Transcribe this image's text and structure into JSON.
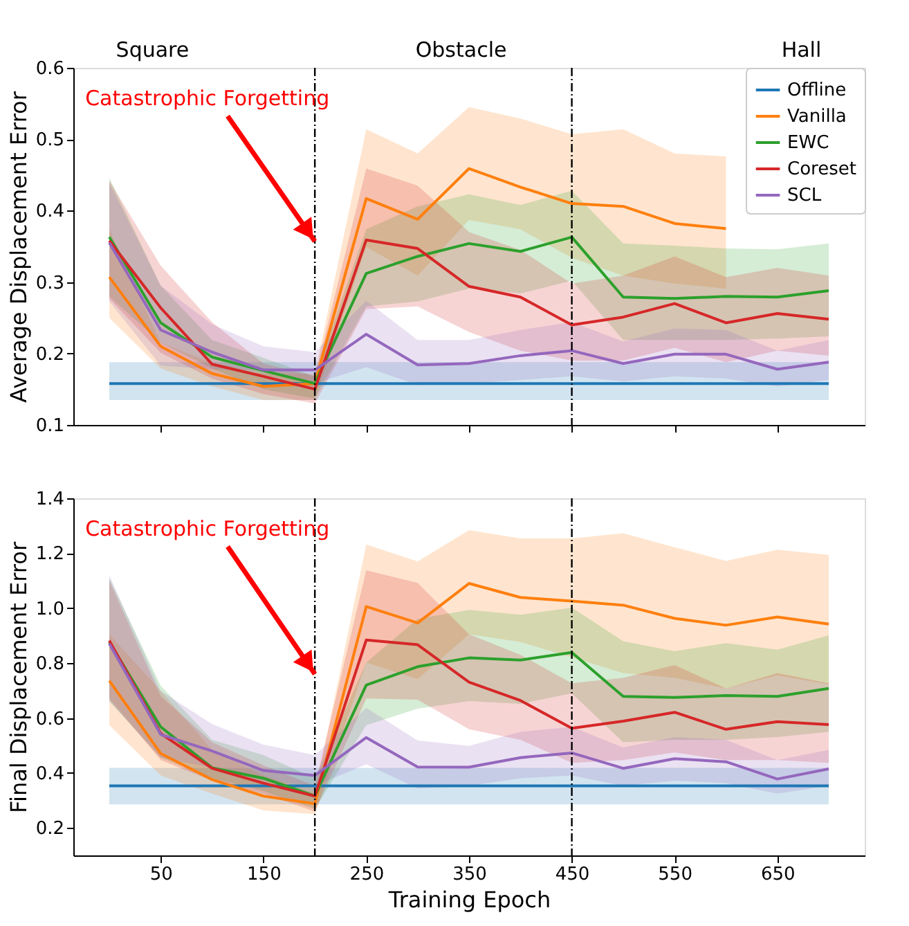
{
  "chart_data": [
    {
      "type": "line",
      "ylabel": "Average Displacement Error",
      "x": [
        0,
        50,
        100,
        150,
        200,
        250,
        300,
        350,
        400,
        450,
        500,
        550,
        600,
        650,
        700
      ],
      "xlim": [
        -35,
        735
      ],
      "ylim": [
        0.1,
        0.6
      ],
      "xticks": [
        50,
        150,
        250,
        350,
        450,
        550,
        650
      ],
      "yticks": [
        0.1,
        0.2,
        0.3,
        0.4,
        0.5,
        0.6
      ],
      "tick_labels": "y",
      "legend": "top right",
      "annotations": [
        {
          "text": "Catastrophic Forgetting",
          "x": 200,
          "y": 0.357
        },
        "Square",
        "Obstacle",
        "Hall"
      ],
      "ref_lines": [
        {
          "axis": "x",
          "value": 200,
          "color": "#000000",
          "line_style": "dashed"
        },
        {
          "axis": "x",
          "value": 450,
          "color": "#000000",
          "line_style": "dashed"
        }
      ],
      "series": [
        {
          "name": "Offline",
          "color": "#1f77b4",
          "values": [
            0.158,
            0.158,
            0.158,
            0.158,
            0.158,
            0.158,
            0.158,
            0.158,
            0.158,
            0.158,
            0.158,
            0.158,
            0.158,
            0.158,
            0.158
          ],
          "lower": [
            0.135,
            0.135,
            0.135,
            0.135,
            0.135,
            0.135,
            0.135,
            0.135,
            0.135,
            0.135,
            0.135,
            0.135,
            0.135,
            0.135,
            0.135
          ],
          "upper": [
            0.188,
            0.188,
            0.188,
            0.188,
            0.188,
            0.188,
            0.188,
            0.188,
            0.188,
            0.188,
            0.188,
            0.188,
            0.188,
            0.188,
            0.188
          ]
        },
        {
          "name": "Vanilla",
          "color": "#ff7f0e",
          "values": [
            0.307,
            0.21,
            0.172,
            0.154,
            0.158,
            0.417,
            0.388,
            0.459,
            0.433,
            0.41,
            0.406,
            0.382,
            0.375,
            null,
            null
          ],
          "lower": [
            0.25,
            0.179,
            0.154,
            0.135,
            0.135,
            0.349,
            0.309,
            0.387,
            0.374,
            0.334,
            0.309,
            0.298,
            0.291,
            null,
            null
          ],
          "upper": [
            0.374,
            0.215,
            0.187,
            0.172,
            0.172,
            0.514,
            0.48,
            0.545,
            0.529,
            0.507,
            0.514,
            0.48,
            0.476,
            null,
            null
          ]
        },
        {
          "name": "EWC",
          "color": "#2ca02c",
          "values": [
            0.363,
            0.243,
            0.195,
            0.176,
            0.158,
            0.312,
            0.336,
            0.354,
            0.343,
            0.363,
            0.279,
            0.277,
            0.28,
            0.279,
            0.288
          ],
          "lower": [
            0.28,
            0.215,
            0.179,
            0.15,
            0.137,
            0.266,
            0.273,
            0.291,
            0.284,
            0.302,
            0.219,
            0.219,
            0.219,
            0.221,
            0.224
          ],
          "upper": [
            0.446,
            0.295,
            0.219,
            0.194,
            0.168,
            0.374,
            0.406,
            0.423,
            0.408,
            0.428,
            0.354,
            0.351,
            0.347,
            0.346,
            0.354
          ]
        },
        {
          "name": "Coreset",
          "color": "#d62728",
          "values": [
            0.358,
            0.264,
            0.185,
            0.168,
            0.15,
            0.359,
            0.347,
            0.294,
            0.279,
            0.24,
            0.251,
            0.27,
            0.243,
            0.256,
            0.248
          ],
          "lower": [
            0.277,
            0.201,
            0.165,
            0.143,
            0.13,
            0.262,
            0.266,
            0.23,
            0.204,
            0.19,
            0.19,
            0.208,
            0.188,
            0.204,
            0.197
          ],
          "upper": [
            0.442,
            0.323,
            0.244,
            0.186,
            0.168,
            0.459,
            0.435,
            0.37,
            0.345,
            0.298,
            0.309,
            0.336,
            0.307,
            0.32,
            0.309
          ]
        },
        {
          "name": "SCL",
          "color": "#9467bd",
          "values": [
            0.355,
            0.233,
            0.202,
            0.177,
            0.177,
            0.227,
            0.184,
            0.186,
            0.197,
            0.204,
            0.186,
            0.199,
            0.199,
            0.178,
            0.188
          ],
          "lower": [
            0.273,
            0.183,
            0.178,
            0.176,
            0.158,
            0.181,
            0.156,
            0.158,
            0.163,
            0.168,
            0.161,
            0.168,
            0.165,
            0.154,
            0.163
          ],
          "upper": [
            0.439,
            0.295,
            0.241,
            0.21,
            0.202,
            0.274,
            0.219,
            0.219,
            0.233,
            0.244,
            0.217,
            0.235,
            0.233,
            0.204,
            0.219
          ]
        }
      ]
    },
    {
      "type": "line",
      "ylabel": "Final Displacement Error",
      "xlabel": "Training Epoch",
      "x": [
        0,
        50,
        100,
        150,
        200,
        250,
        300,
        350,
        400,
        450,
        500,
        550,
        600,
        650,
        700
      ],
      "xlim": [
        -35,
        735
      ],
      "ylim": [
        0.1,
        1.4
      ],
      "xticks": [
        50,
        150,
        250,
        350,
        450,
        550,
        650
      ],
      "yticks": [
        0.2,
        0.4,
        0.6,
        0.8,
        {
          "value": 1.0,
          "label": "1.0"
        },
        1.2,
        1.4
      ],
      "legend": false,
      "annotations": [
        {
          "text": "Catastrophic Forgetting",
          "x": 200,
          "y": 0.76
        }
      ],
      "ref_lines": [
        {
          "axis": "x",
          "value": 200,
          "color": "#000000",
          "line_style": "dashed"
        },
        {
          "axis": "x",
          "value": 450,
          "color": "#000000",
          "line_style": "dashed"
        }
      ],
      "series": [
        {
          "color": "#1f77b4",
          "values": [
            0.353,
            0.353,
            0.353,
            0.353,
            0.353,
            0.353,
            0.353,
            0.353,
            0.353,
            0.353,
            0.353,
            0.353,
            0.353,
            0.353,
            0.353
          ],
          "lower": [
            0.286,
            0.286,
            0.286,
            0.286,
            0.286,
            0.286,
            0.286,
            0.286,
            0.286,
            0.286,
            0.286,
            0.286,
            0.286,
            0.286,
            0.286
          ],
          "upper": [
            0.419,
            0.419,
            0.419,
            0.419,
            0.419,
            0.419,
            0.419,
            0.419,
            0.419,
            0.419,
            0.419,
            0.419,
            0.419,
            0.419,
            0.419
          ]
        },
        {
          "color": "#ff7f0e",
          "values": [
            0.736,
            0.471,
            0.376,
            0.316,
            0.288,
            1.006,
            0.946,
            1.09,
            1.039,
            1.026,
            1.011,
            0.963,
            0.938,
            0.968,
            0.942
          ],
          "lower": [
            0.574,
            0.391,
            0.325,
            0.264,
            0.25,
            0.802,
            0.742,
            0.905,
            0.877,
            0.821,
            0.764,
            0.746,
            0.708,
            0.755,
            0.723
          ],
          "upper": [
            0.905,
            0.699,
            0.484,
            0.391,
            0.325,
            1.232,
            1.17,
            1.284,
            1.254,
            1.254,
            1.273,
            1.222,
            1.172,
            1.213,
            1.194
          ]
        },
        {
          "color": "#2ca02c",
          "values": [
            0.877,
            0.568,
            0.419,
            0.381,
            0.316,
            0.72,
            0.787,
            0.819,
            0.811,
            0.839,
            0.679,
            0.675,
            0.682,
            0.679,
            0.708
          ],
          "lower": [
            0.662,
            0.456,
            0.381,
            0.335,
            0.269,
            0.574,
            0.634,
            0.662,
            0.652,
            0.69,
            0.512,
            0.521,
            0.521,
            0.531,
            0.55
          ],
          "upper": [
            1.11,
            0.718,
            0.521,
            0.465,
            0.381,
            0.802,
            0.961,
            0.994,
            0.976,
            1.002,
            0.88,
            0.843,
            0.873,
            0.849,
            0.901
          ]
        },
        {
          "color": "#d62728",
          "values": [
            0.882,
            0.544,
            0.417,
            0.363,
            0.316,
            0.884,
            0.867,
            0.731,
            0.664,
            0.563,
            0.589,
            0.621,
            0.559,
            0.587,
            0.576
          ],
          "lower": [
            0.671,
            0.447,
            0.372,
            0.325,
            0.26,
            0.671,
            0.667,
            0.559,
            0.521,
            0.437,
            0.447,
            0.475,
            0.447,
            0.447,
            0.437
          ],
          "upper": [
            1.101,
            0.68,
            0.512,
            0.428,
            0.353,
            1.138,
            1.092,
            0.905,
            0.83,
            0.727,
            0.746,
            0.793,
            0.708,
            0.764,
            0.727
          ]
        },
        {
          "color": "#9467bd",
          "values": [
            0.871,
            0.54,
            0.48,
            0.409,
            0.391,
            0.529,
            0.422,
            0.421,
            0.456,
            0.473,
            0.417,
            0.452,
            0.441,
            0.378,
            0.415
          ],
          "lower": [
            0.662,
            0.456,
            0.419,
            0.372,
            0.353,
            0.432,
            0.344,
            0.353,
            0.381,
            0.391,
            0.353,
            0.372,
            0.363,
            0.325,
            0.353
          ],
          "upper": [
            1.12,
            0.699,
            0.578,
            0.503,
            0.465,
            0.637,
            0.518,
            0.499,
            0.55,
            0.568,
            0.493,
            0.531,
            0.521,
            0.447,
            0.484
          ]
        }
      ]
    }
  ]
}
